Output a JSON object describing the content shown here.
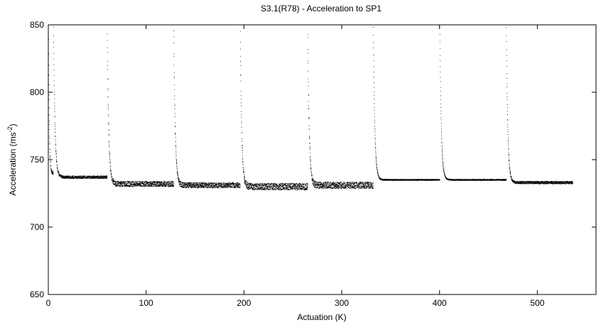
{
  "chart_data": {
    "type": "scatter",
    "title": "S3.1(R78) - Acceleration to SP1",
    "xlabel": "Actuation (K)",
    "ylabel_main": "Acceleration (ms",
    "ylabel_sup": "-2",
    "ylabel_close": ")",
    "xlim": [
      0,
      560
    ],
    "ylim": [
      650,
      850
    ],
    "xticks": [
      0,
      100,
      200,
      300,
      400,
      500
    ],
    "yticks": [
      650,
      700,
      750,
      800,
      850
    ],
    "grid": false,
    "legend": "none",
    "color": "#000000",
    "segments": [
      {
        "start": 0,
        "end": 5,
        "peak": 850,
        "plateau": 740,
        "band": 3
      },
      {
        "start": 5,
        "end": 60,
        "peak": 848,
        "plateau": 737,
        "band": 2
      },
      {
        "start": 60,
        "end": 128,
        "peak": 845,
        "plateau": 732,
        "band": 4
      },
      {
        "start": 128,
        "end": 196,
        "peak": 846,
        "plateau": 731,
        "band": 4
      },
      {
        "start": 196,
        "end": 265,
        "peak": 843,
        "plateau": 730,
        "band": 5
      },
      {
        "start": 265,
        "end": 332,
        "peak": 845,
        "plateau": 731,
        "band": 5
      },
      {
        "start": 332,
        "end": 400,
        "peak": 848,
        "plateau": 735,
        "band": 1
      },
      {
        "start": 400,
        "end": 468,
        "peak": 848,
        "plateau": 735,
        "band": 1
      },
      {
        "start": 468,
        "end": 536,
        "peak": 848,
        "plateau": 733,
        "band": 2
      }
    ]
  }
}
